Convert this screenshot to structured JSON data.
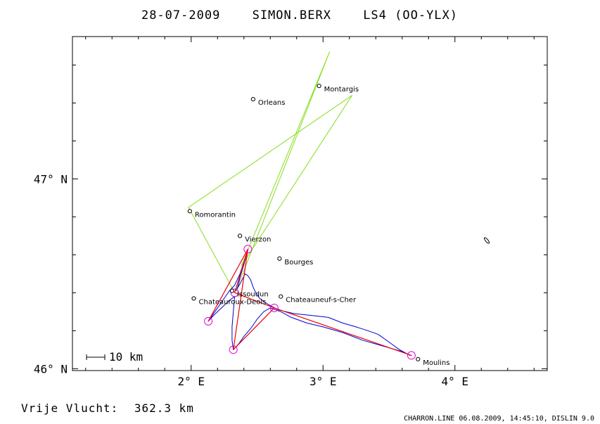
{
  "header": {
    "date": "28-07-2009",
    "pilot": "SIMON.BERX",
    "glider": "LS4 (OO-YLX)"
  },
  "axes": {
    "lon_range": [
      1.1,
      4.7
    ],
    "lat_range": [
      45.99,
      47.75
    ],
    "x_ticks": [
      {
        "value": 2,
        "label": "2° E"
      },
      {
        "value": 3,
        "label": "3° E"
      },
      {
        "value": 4,
        "label": "4° E"
      }
    ],
    "y_ticks": [
      {
        "value": 46,
        "label": "46° N"
      },
      {
        "value": 47,
        "label": "47° N"
      }
    ]
  },
  "scale_bar": {
    "label": "10 km",
    "km": 10
  },
  "cities": [
    {
      "name": "Orleans",
      "lon": 2.47,
      "lat": 47.42
    },
    {
      "name": "Montargis",
      "lon": 2.97,
      "lat": 47.49
    },
    {
      "name": "Romorantin",
      "lon": 1.99,
      "lat": 46.83
    },
    {
      "name": "Vierzon",
      "lon": 2.37,
      "lat": 46.7
    },
    {
      "name": "Bourges",
      "lon": 2.67,
      "lat": 46.58
    },
    {
      "name": "Chateauroux-Deols",
      "lon": 2.02,
      "lat": 46.37
    },
    {
      "name": "Issoudun",
      "lon": 2.31,
      "lat": 46.41
    },
    {
      "name": "Chateauneuf-s-Cher",
      "lon": 2.68,
      "lat": 46.38
    },
    {
      "name": "Moulins",
      "lon": 3.72,
      "lat": 46.05
    }
  ],
  "task": {
    "color": "#88dd22",
    "points": [
      {
        "lon": 2.33,
        "lat": 46.4
      },
      {
        "lon": 1.98,
        "lat": 46.85
      },
      {
        "lon": 3.22,
        "lat": 47.44
      },
      {
        "lon": 2.38,
        "lat": 46.54
      },
      {
        "lon": 3.05,
        "lat": 47.67
      },
      {
        "lon": 2.34,
        "lat": 46.41
      }
    ]
  },
  "turnpoints": {
    "color": "#dd00dd",
    "points": [
      {
        "lon": 2.43,
        "lat": 46.63
      },
      {
        "lon": 2.13,
        "lat": 46.25
      },
      {
        "lon": 2.32,
        "lat": 46.1
      },
      {
        "lon": 2.63,
        "lat": 46.32
      },
      {
        "lon": 3.67,
        "lat": 46.07
      },
      {
        "lon": 2.33,
        "lat": 46.4
      }
    ]
  },
  "optimized_route": {
    "color": "#ee0000",
    "points": [
      {
        "lon": 2.33,
        "lat": 46.4
      },
      {
        "lon": 2.43,
        "lat": 46.63
      },
      {
        "lon": 2.13,
        "lat": 46.25
      },
      {
        "lon": 2.43,
        "lat": 46.63
      },
      {
        "lon": 2.32,
        "lat": 46.1
      },
      {
        "lon": 2.63,
        "lat": 46.32
      },
      {
        "lon": 3.67,
        "lat": 46.07
      },
      {
        "lon": 2.63,
        "lat": 46.32
      },
      {
        "lon": 2.33,
        "lat": 46.4
      }
    ]
  },
  "flight_track": {
    "color": "#0000cc",
    "points": [
      {
        "lon": 2.34,
        "lat": 46.41
      },
      {
        "lon": 2.38,
        "lat": 46.46
      },
      {
        "lon": 2.41,
        "lat": 46.5
      },
      {
        "lon": 2.43,
        "lat": 46.49
      },
      {
        "lon": 2.45,
        "lat": 46.47
      },
      {
        "lon": 2.47,
        "lat": 46.43
      },
      {
        "lon": 2.49,
        "lat": 46.4
      },
      {
        "lon": 2.52,
        "lat": 46.37
      },
      {
        "lon": 2.58,
        "lat": 46.34
      },
      {
        "lon": 2.66,
        "lat": 46.31
      },
      {
        "lon": 2.78,
        "lat": 46.29
      },
      {
        "lon": 2.92,
        "lat": 46.28
      },
      {
        "lon": 3.04,
        "lat": 46.27
      },
      {
        "lon": 3.15,
        "lat": 46.24
      },
      {
        "lon": 3.25,
        "lat": 46.22
      },
      {
        "lon": 3.34,
        "lat": 46.2
      },
      {
        "lon": 3.42,
        "lat": 46.18
      },
      {
        "lon": 3.5,
        "lat": 46.14
      },
      {
        "lon": 3.58,
        "lat": 46.1
      },
      {
        "lon": 3.66,
        "lat": 46.07
      },
      {
        "lon": 3.6,
        "lat": 46.09
      },
      {
        "lon": 3.45,
        "lat": 46.12
      },
      {
        "lon": 3.3,
        "lat": 46.15
      },
      {
        "lon": 3.15,
        "lat": 46.19
      },
      {
        "lon": 3.0,
        "lat": 46.22
      },
      {
        "lon": 2.88,
        "lat": 46.24
      },
      {
        "lon": 2.76,
        "lat": 46.27
      },
      {
        "lon": 2.68,
        "lat": 46.3
      },
      {
        "lon": 2.6,
        "lat": 46.32
      },
      {
        "lon": 2.55,
        "lat": 46.3
      },
      {
        "lon": 2.5,
        "lat": 46.26
      },
      {
        "lon": 2.45,
        "lat": 46.21
      },
      {
        "lon": 2.4,
        "lat": 46.17
      },
      {
        "lon": 2.36,
        "lat": 46.13
      },
      {
        "lon": 2.32,
        "lat": 46.1
      },
      {
        "lon": 2.31,
        "lat": 46.15
      },
      {
        "lon": 2.31,
        "lat": 46.22
      },
      {
        "lon": 2.32,
        "lat": 46.3
      },
      {
        "lon": 2.33,
        "lat": 46.38
      },
      {
        "lon": 2.29,
        "lat": 46.36
      },
      {
        "lon": 2.23,
        "lat": 46.32
      },
      {
        "lon": 2.17,
        "lat": 46.28
      },
      {
        "lon": 2.13,
        "lat": 46.25
      },
      {
        "lon": 2.18,
        "lat": 46.3
      },
      {
        "lon": 2.24,
        "lat": 46.36
      },
      {
        "lon": 2.29,
        "lat": 46.41
      },
      {
        "lon": 2.33,
        "lat": 46.44
      },
      {
        "lon": 2.37,
        "lat": 46.5
      },
      {
        "lon": 2.41,
        "lat": 46.58
      },
      {
        "lon": 2.43,
        "lat": 46.63
      },
      {
        "lon": 2.4,
        "lat": 46.55
      },
      {
        "lon": 2.37,
        "lat": 46.48
      },
      {
        "lon": 2.35,
        "lat": 46.42
      }
    ]
  },
  "footer": {
    "distance_label": "Vrije Vlucht:",
    "distance_value": "362.3 km",
    "credit": "CHARRON.LINE 06.08.2009, 14:45:10, DISLIN 9.0"
  }
}
